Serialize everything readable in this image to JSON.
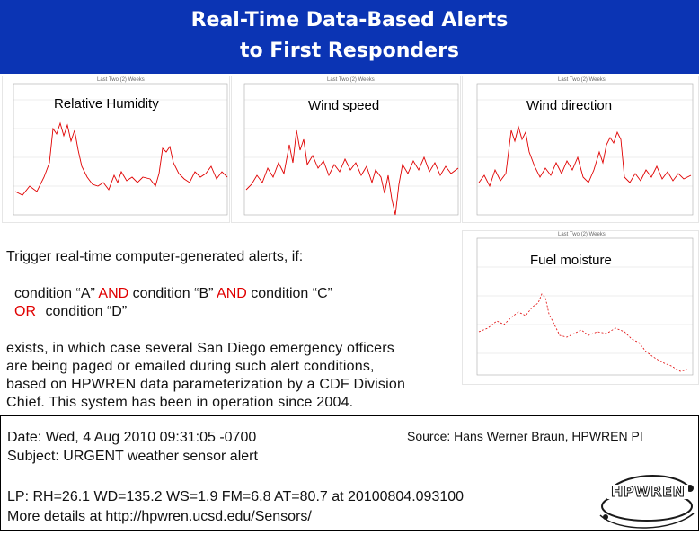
{
  "title": {
    "line1": "Real-Time Data-Based Alerts",
    "line2": "to First Responders"
  },
  "charts": [
    {
      "label": "Relative Humidity",
      "chart_title": "Last Two (2) Weeks"
    },
    {
      "label": "Wind speed",
      "chart_title": "Last Two (2) Weeks"
    },
    {
      "label": "Wind direction",
      "chart_title": "Last Two (2) Weeks"
    },
    {
      "label": "Fuel moisture",
      "chart_title": "Last Two (2) Weeks"
    }
  ],
  "trigger_text": "Trigger real-time computer-generated alerts, if:",
  "condition_line": {
    "a": "condition “A”",
    "and1": "AND",
    "b": "condition “B”",
    "and2": "AND",
    "c": "condition “C”"
  },
  "or_line": {
    "or": "OR",
    "d": "condition “D”"
  },
  "paragraph": [
    "exists, in which case several San Diego emergency officers",
    "are being paged or emailed during such alert conditions,",
    "based on HPWREN data parameterization by a CDF Division",
    "Chief. This system has been in operation since 2004."
  ],
  "email": {
    "date": "Date: Wed, 4 Aug 2010 09:31:05 -0700",
    "subject": "Subject: URGENT weather sensor alert",
    "lp": "LP: RH=26.1 WD=135.2 WS=1.9 FM=6.8 AT=80.7 at 20100804.093100",
    "details": "More details at http://hpwren.ucsd.edu/Sensors/"
  },
  "source": "Source: Hans Werner Braun, HPWREN PI",
  "logo_text": "HPWREN",
  "colors": {
    "header_bg": "#0b34b4",
    "series": "#e00000",
    "accent_red": "#e00000"
  }
}
